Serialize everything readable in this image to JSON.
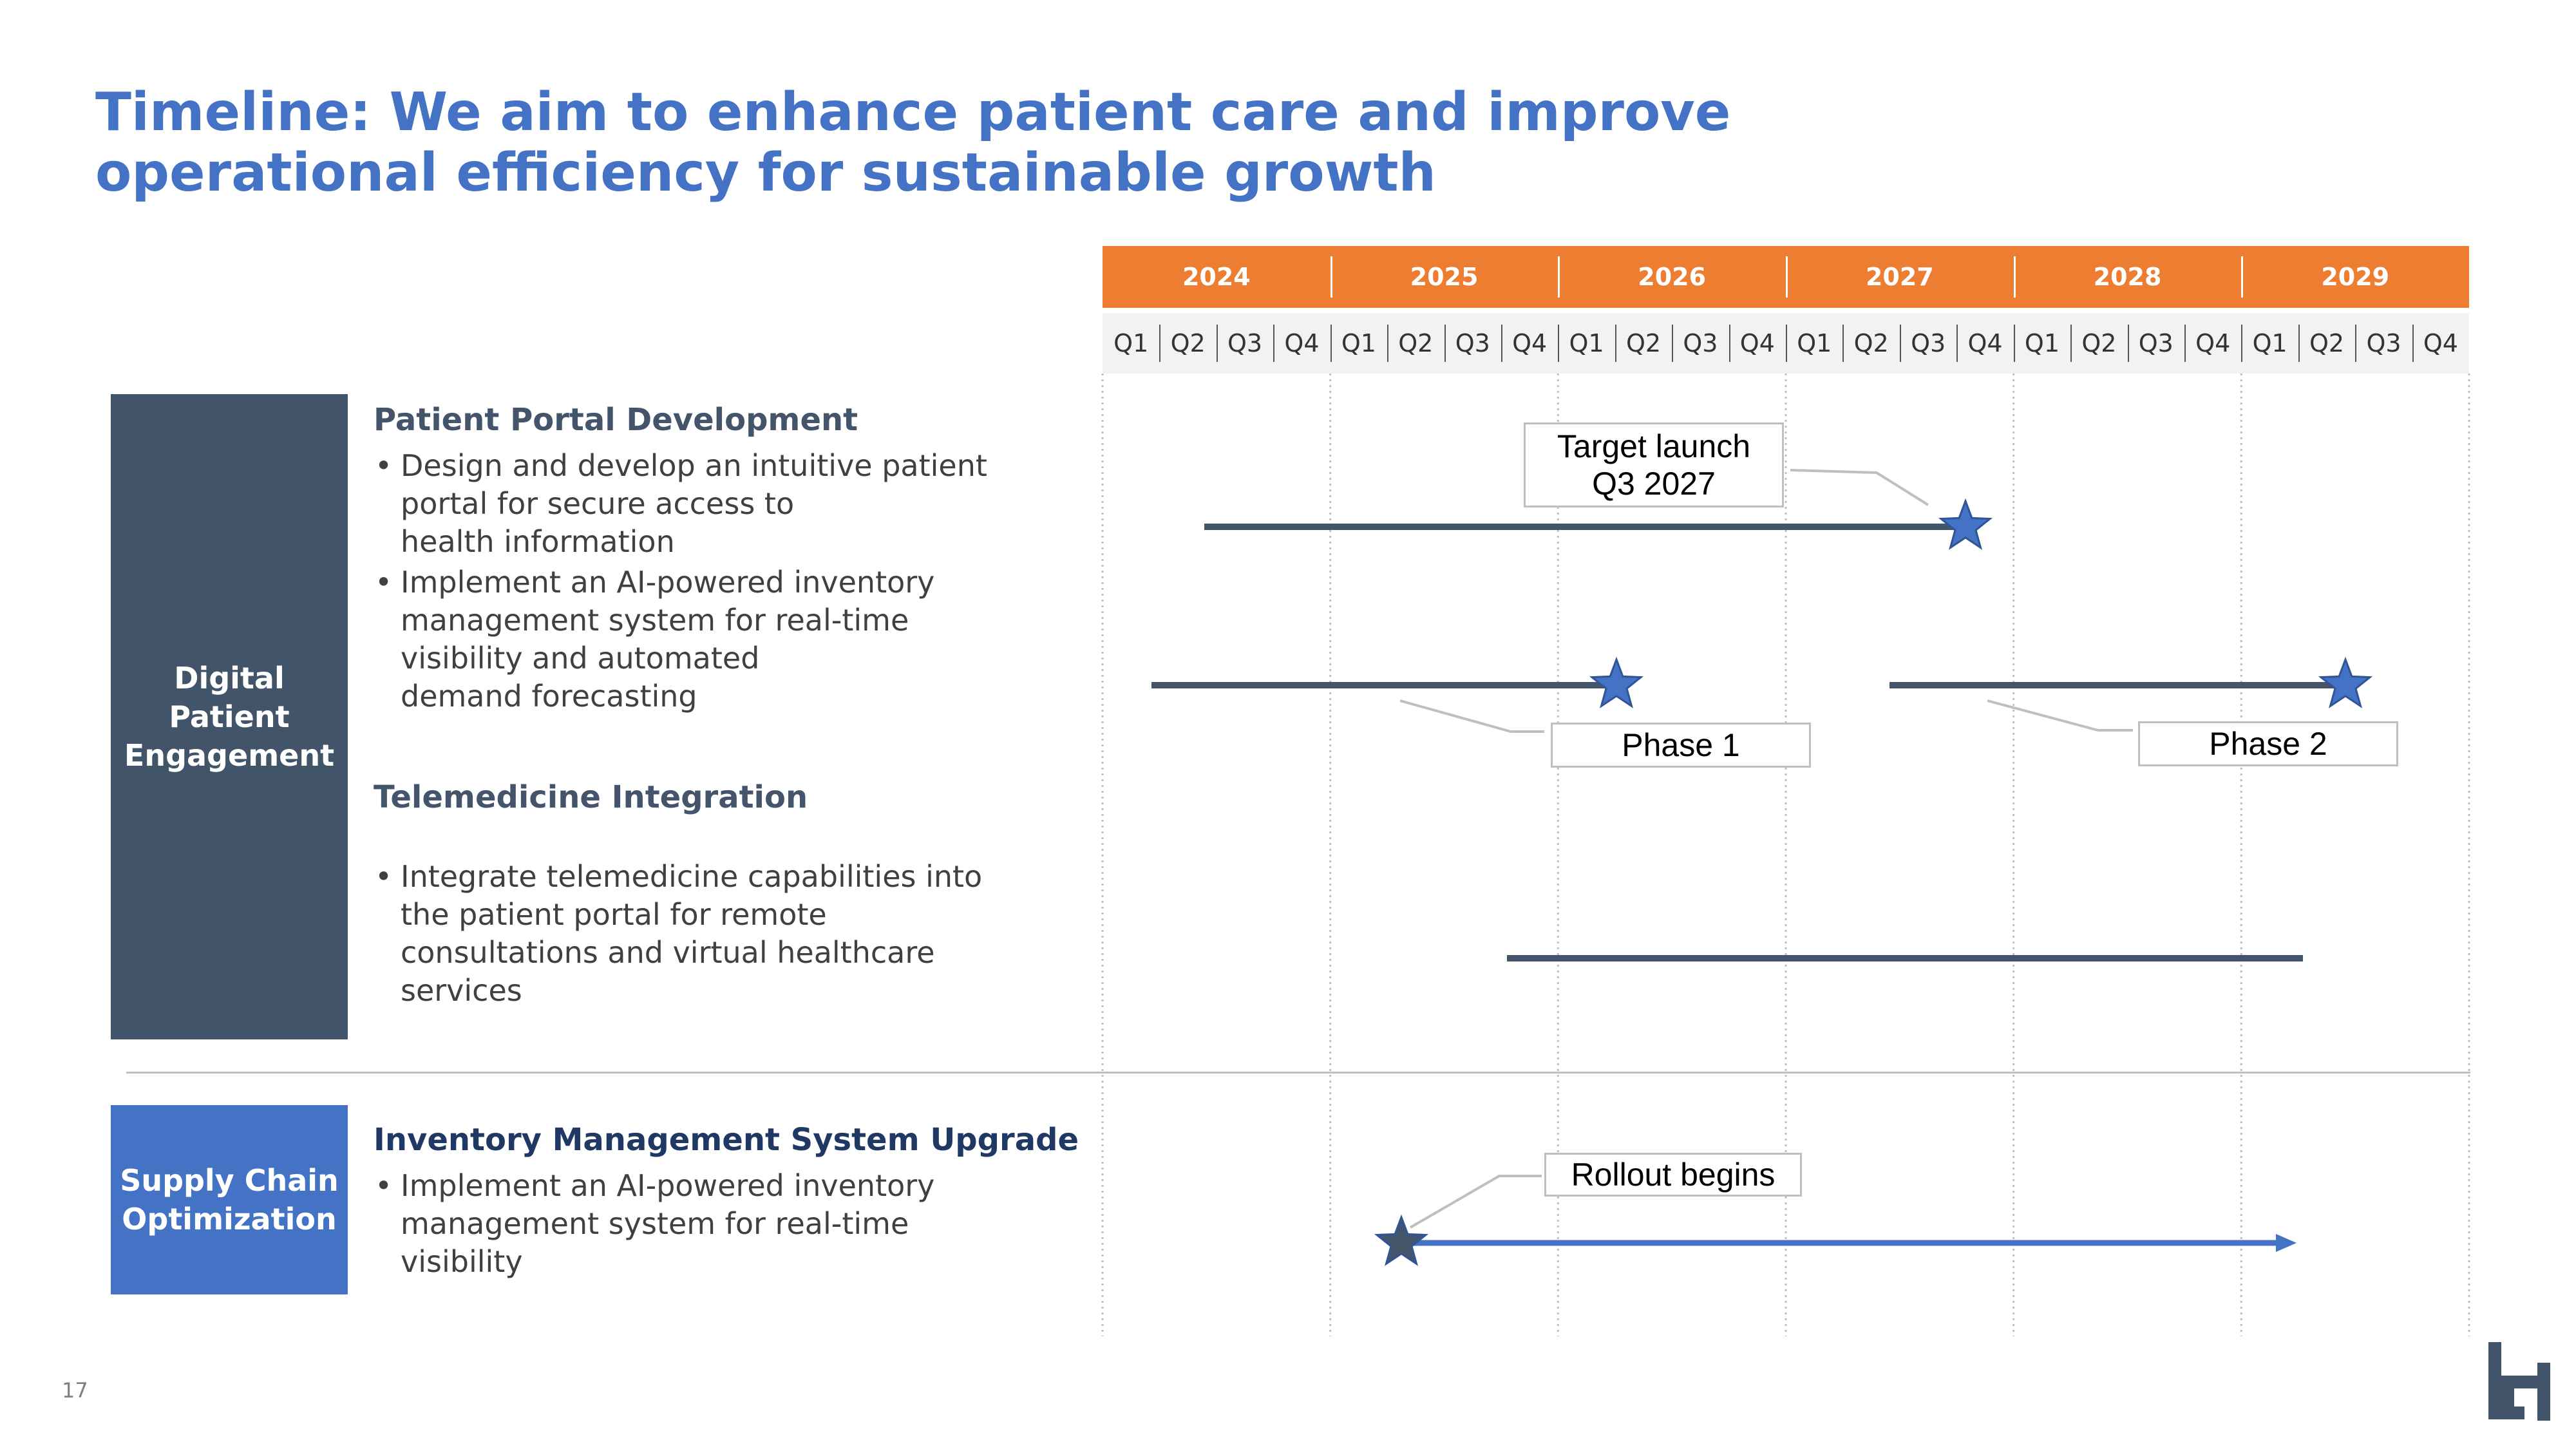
{
  "title": {
    "line1": "Timeline: We aim to enhance patient care and improve",
    "line2": "operational efficiency for sustainable growth"
  },
  "timeline": {
    "years": [
      "2024",
      "2025",
      "2026",
      "2027",
      "2028",
      "2029"
    ],
    "quarters": [
      "Q1",
      "Q2",
      "Q3",
      "Q4"
    ],
    "colors": {
      "year_bar": "#ed7d31",
      "bar_navy": "#44546a",
      "bar_blue": "#4472c4",
      "star_blue": "#4472c4",
      "star_navy": "#44546a"
    }
  },
  "rows": [
    {
      "label_line1": "Digital Patient",
      "label_line2": "Engagement",
      "color": "#425469"
    },
    {
      "label_line1": "Supply Chain",
      "label_line2": "Optimization",
      "color": "#4472c4"
    }
  ],
  "sections": {
    "portal": {
      "heading": "Patient Portal Development",
      "bullet1": [
        "Design and develop an intuitive patient",
        "portal for secure access to",
        "health information"
      ],
      "bullet2": [
        "Implement an AI-powered inventory",
        "management system for real-time",
        "visibility and automated",
        "demand forecasting"
      ]
    },
    "telemedicine": {
      "heading": "Telemedicine Integration",
      "bullet1": [
        "Integrate telemedicine capabilities into",
        "the patient portal for remote",
        "consultations and virtual healthcare",
        "services"
      ]
    },
    "inventory": {
      "heading": "Inventory Management System Upgrade",
      "bullet1": [
        "Implement an AI-powered inventory",
        "management system for real-time",
        "visibility"
      ]
    }
  },
  "callouts": {
    "target_launch": [
      "Target launch",
      "Q3 2027"
    ],
    "phase1": "Phase 1",
    "phase2": "Phase 2",
    "rollout": "Rollout begins"
  },
  "chart_data": {
    "type": "gantt",
    "x_axis": {
      "start": "2024 Q1",
      "end": "2029 Q4",
      "unit": "quarter"
    },
    "bars": [
      {
        "task": "Patient Portal Development",
        "start": "2024 Q2",
        "end": "2027 Q4",
        "milestone": "Target launch Q3 2027",
        "color": "#44546a"
      },
      {
        "task": "Implement an AI-powered inventory management system",
        "start": "2024 Q1",
        "end": "2026 Q1",
        "milestone": "Phase 1",
        "color": "#44546a"
      },
      {
        "task": "Implement an AI-powered inventory management system",
        "start": "2027 Q2",
        "end": "2029 Q2",
        "milestone": "Phase 2",
        "color": "#44546a"
      },
      {
        "task": "Telemedicine Integration",
        "start": "2025 Q4",
        "end": "2029 Q3",
        "color": "#44546a"
      },
      {
        "task": "Inventory Management System Upgrade",
        "start": "2025 Q2",
        "end": "2029 Q3",
        "milestone": "Rollout begins",
        "color": "#4472c4"
      }
    ]
  },
  "page_number": "17"
}
